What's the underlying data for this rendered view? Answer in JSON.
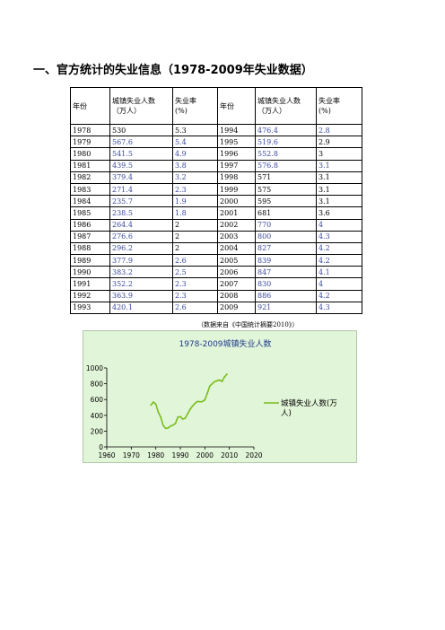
{
  "heading": "一、官方统计的失业信息（1978-2009年失业数据）",
  "table": {
    "headers": [
      "年份",
      "城镇失业人数\n（万人）",
      "失业率\n(%)",
      "年份",
      "城镇失业人数\n（万人）",
      "失业率\n(%)"
    ],
    "rows": [
      [
        {
          "v": "1978"
        },
        {
          "v": "530"
        },
        {
          "v": "5.3"
        },
        {
          "v": "1994"
        },
        {
          "v": "476.4",
          "blue": true
        },
        {
          "v": "2.8",
          "blue": true
        }
      ],
      [
        {
          "v": "1979"
        },
        {
          "v": "567.6",
          "blue": true
        },
        {
          "v": "5.4",
          "blue": true
        },
        {
          "v": "1995"
        },
        {
          "v": "519.6",
          "blue": true
        },
        {
          "v": "2.9"
        }
      ],
      [
        {
          "v": "1980"
        },
        {
          "v": "541.5",
          "blue": true
        },
        {
          "v": "4.9",
          "blue": true
        },
        {
          "v": "1996"
        },
        {
          "v": "552.8",
          "blue": true
        },
        {
          "v": "3"
        }
      ],
      [
        {
          "v": "1981"
        },
        {
          "v": "439.5",
          "blue": true
        },
        {
          "v": "3.8",
          "blue": true
        },
        {
          "v": "1997"
        },
        {
          "v": "576.8",
          "blue": true
        },
        {
          "v": "3.1",
          "blue": true
        }
      ],
      [
        {
          "v": "1982"
        },
        {
          "v": "379.4",
          "blue": true
        },
        {
          "v": "3.2",
          "blue": true
        },
        {
          "v": "1998"
        },
        {
          "v": "571"
        },
        {
          "v": "3.1"
        }
      ],
      [
        {
          "v": "1983"
        },
        {
          "v": "271.4",
          "blue": true
        },
        {
          "v": "2.3",
          "blue": true
        },
        {
          "v": "1999"
        },
        {
          "v": "575"
        },
        {
          "v": "3.1"
        }
      ],
      [
        {
          "v": "1984"
        },
        {
          "v": "235.7",
          "blue": true
        },
        {
          "v": "1.9",
          "blue": true
        },
        {
          "v": "2000"
        },
        {
          "v": "595"
        },
        {
          "v": "3.1"
        }
      ],
      [
        {
          "v": "1985"
        },
        {
          "v": "238.5",
          "blue": true
        },
        {
          "v": "1.8",
          "blue": true
        },
        {
          "v": "2001"
        },
        {
          "v": "681"
        },
        {
          "v": "3.6"
        }
      ],
      [
        {
          "v": "1986"
        },
        {
          "v": "264.4",
          "blue": true
        },
        {
          "v": "2"
        },
        {
          "v": "2002"
        },
        {
          "v": "770",
          "blue": true
        },
        {
          "v": "4",
          "blue": true
        }
      ],
      [
        {
          "v": "1987"
        },
        {
          "v": "276.6",
          "blue": true
        },
        {
          "v": "2"
        },
        {
          "v": "2003"
        },
        {
          "v": "800",
          "blue": true
        },
        {
          "v": "4.3",
          "blue": true
        }
      ],
      [
        {
          "v": "1988"
        },
        {
          "v": "296.2",
          "blue": true
        },
        {
          "v": "2"
        },
        {
          "v": "2004"
        },
        {
          "v": "827",
          "blue": true
        },
        {
          "v": "4.2",
          "blue": true
        }
      ],
      [
        {
          "v": "1989"
        },
        {
          "v": "377.9",
          "blue": true
        },
        {
          "v": "2.6",
          "blue": true
        },
        {
          "v": "2005"
        },
        {
          "v": "839",
          "blue": true
        },
        {
          "v": "4.2",
          "blue": true
        }
      ],
      [
        {
          "v": "1990"
        },
        {
          "v": "383.2",
          "blue": true
        },
        {
          "v": "2.5",
          "blue": true
        },
        {
          "v": "2006"
        },
        {
          "v": "847",
          "blue": true
        },
        {
          "v": "4.1",
          "blue": true
        }
      ],
      [
        {
          "v": "1991"
        },
        {
          "v": "352.2",
          "blue": true
        },
        {
          "v": "2.3",
          "blue": true
        },
        {
          "v": "2007"
        },
        {
          "v": "830",
          "blue": true
        },
        {
          "v": "4",
          "blue": true
        }
      ],
      [
        {
          "v": "1992"
        },
        {
          "v": "363.9",
          "blue": true
        },
        {
          "v": "2.3",
          "blue": true
        },
        {
          "v": "2008"
        },
        {
          "v": "886",
          "blue": true
        },
        {
          "v": "4.2",
          "blue": true
        }
      ],
      [
        {
          "v": "1993"
        },
        {
          "v": "420.1",
          "blue": true
        },
        {
          "v": "2.6",
          "blue": true
        },
        {
          "v": "2009"
        },
        {
          "v": "921",
          "blue": true
        },
        {
          "v": "4.3",
          "blue": true
        }
      ]
    ]
  },
  "source_note": "（数据来自《中国统计摘要2010》）",
  "colors": {
    "highlight_text": "#3b4a9b",
    "chart_bg": "#e1f5d8",
    "series_line": "#7bbd1f",
    "title_text": "#1f3a8a"
  },
  "chart_data": {
    "type": "line",
    "title": "1978-2009城镇失业人数",
    "xlabel": "",
    "ylabel": "",
    "xlim": [
      1960,
      2020
    ],
    "ylim": [
      0,
      1000
    ],
    "x_ticks": [
      "1960",
      "1970",
      "1980",
      "1990",
      "2000",
      "2010",
      "2020"
    ],
    "y_ticks": [
      "0",
      "200",
      "400",
      "600",
      "800",
      "1000"
    ],
    "legend_position": "right",
    "series": [
      {
        "name": "城镇失业人数(万人)",
        "x": [
          1978,
          1979,
          1980,
          1981,
          1982,
          1983,
          1984,
          1985,
          1986,
          1987,
          1988,
          1989,
          1990,
          1991,
          1992,
          1993,
          1994,
          1995,
          1996,
          1997,
          1998,
          1999,
          2000,
          2001,
          2002,
          2003,
          2004,
          2005,
          2006,
          2007,
          2008,
          2009
        ],
        "y": [
          530,
          567.6,
          541.5,
          439.5,
          379.4,
          271.4,
          235.7,
          238.5,
          264.4,
          276.6,
          296.2,
          377.9,
          383.2,
          352.2,
          363.9,
          420.1,
          476.4,
          519.6,
          552.8,
          576.8,
          571,
          575,
          595,
          681,
          770,
          800,
          827,
          839,
          847,
          830,
          886,
          921
        ]
      }
    ]
  }
}
